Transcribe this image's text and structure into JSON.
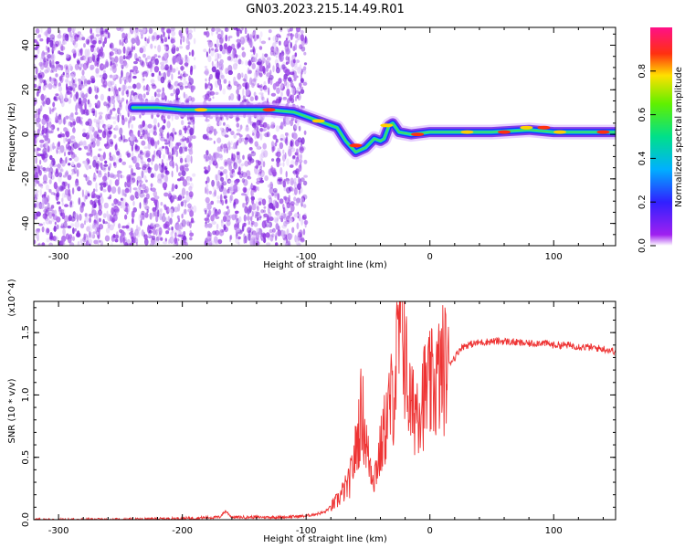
{
  "title": "GN03.2023.215.14.49.R01",
  "chart_data": [
    {
      "type": "heatmap",
      "title": "GN03.2023.215.14.49.R01",
      "xlabel": "Height of straight line (km)",
      "ylabel": "Frequency (Hz)",
      "xlim": [
        -320,
        150
      ],
      "ylim": [
        -50,
        48
      ],
      "xticks": [
        -300,
        -200,
        -100,
        0,
        100
      ],
      "yticks": [
        -40,
        -20,
        0,
        20,
        40
      ],
      "colorbar": {
        "label": "Normalized spectral amplitude",
        "range": [
          0.0,
          1.0
        ],
        "ticks": [
          "0.0",
          "0.2",
          "0.4",
          "0.6",
          "0.8"
        ],
        "colormap": "rainbow"
      },
      "noise_regions_km": [
        [
          -320,
          -190
        ],
        [
          -182,
          -100
        ]
      ],
      "ridge": {
        "x": [
          -240,
          -220,
          -200,
          -185,
          -170,
          -150,
          -130,
          -110,
          -95,
          -85,
          -75,
          -68,
          -60,
          -52,
          -45,
          -40,
          -37,
          -33,
          -30,
          -25,
          -15,
          0,
          20,
          50,
          80,
          100,
          120,
          150
        ],
        "y": [
          12,
          12,
          11,
          11,
          11,
          11,
          11,
          10,
          7,
          5,
          3,
          -3,
          -8,
          -6,
          -2,
          -3,
          -2,
          4,
          5,
          1,
          0,
          1,
          1,
          1,
          2,
          1,
          1,
          1
        ]
      },
      "grid": false
    },
    {
      "type": "line",
      "xlabel": "Height of straight line (km)",
      "ylabel": "SNR (10 * v/v)",
      "y_multiplier": "(x10^4)",
      "xlim": [
        -320,
        150
      ],
      "ylim": [
        0,
        1.75
      ],
      "xticks": [
        -300,
        -200,
        -100,
        0,
        100
      ],
      "yticks": [
        "0.0",
        "0.5",
        "1.0",
        "1.5"
      ],
      "series_color": "#ee3333",
      "series": [
        {
          "x": [
            -320,
            -250,
            -200,
            -170,
            -165,
            -160,
            -120,
            -100,
            -85,
            -75,
            -65,
            -60,
            -55,
            -50,
            -45,
            -40,
            -35,
            -30,
            -25,
            -22,
            -20,
            -15,
            -10,
            -5,
            0,
            5,
            10,
            15,
            20,
            25,
            30,
            40,
            50,
            60,
            70,
            80,
            90,
            100,
            110,
            120,
            130,
            140,
            150
          ],
          "y": [
            0.0,
            0.0,
            0.01,
            0.02,
            0.07,
            0.02,
            0.02,
            0.03,
            0.06,
            0.15,
            0.3,
            0.55,
            0.9,
            0.5,
            0.35,
            0.55,
            0.8,
            1.0,
            1.4,
            1.72,
            1.25,
            0.85,
            0.95,
            1.0,
            1.05,
            1.1,
            1.2,
            1.25,
            1.3,
            1.38,
            1.4,
            1.42,
            1.43,
            1.43,
            1.42,
            1.41,
            1.42,
            1.4,
            1.4,
            1.39,
            1.38,
            1.37,
            1.35
          ]
        }
      ],
      "grid": false
    }
  ]
}
